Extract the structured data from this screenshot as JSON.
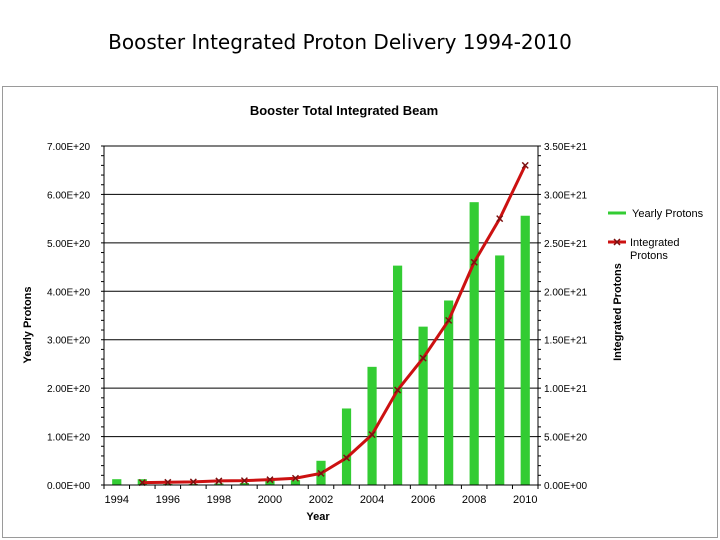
{
  "slide": {
    "title": "Booster Integrated Proton Delivery 1994-2010"
  },
  "chart_data": {
    "type": "bar",
    "title": "Booster Total Integrated Beam",
    "xlabel": "Year",
    "ylabel_left": "Yearly Protons",
    "ylabel_right": "Integrated Protons",
    "x": [
      1994,
      1995,
      1996,
      1997,
      1998,
      1999,
      2000,
      2001,
      2002,
      2003,
      2004,
      2005,
      2006,
      2007,
      2008,
      2009,
      2010
    ],
    "x_tick_labels": [
      "1994",
      "1996",
      "1998",
      "2000",
      "2002",
      "2004",
      "2006",
      "2008",
      "2010"
    ],
    "y_left_ticks": [
      "0.00E+00",
      "1.00E+20",
      "2.00E+20",
      "3.00E+20",
      "4.00E+20",
      "5.00E+20",
      "6.00E+20",
      "7.00E+20"
    ],
    "y_right_ticks": [
      "0.00E+00",
      "5.00E+20",
      "1.00E+21",
      "1.50E+21",
      "2.00E+21",
      "2.50E+21",
      "3.00E+21",
      "3.50E+21"
    ],
    "ylim_left": [
      0,
      7e+20
    ],
    "ylim_right": [
      0,
      3.5e+21
    ],
    "grid": true,
    "legend_position": "right",
    "series": [
      {
        "name": "Yearly Protons",
        "type": "bar",
        "axis": "left",
        "color": "#33cc33",
        "values": [
          1.2e+19,
          1.2e+19,
          2e+18,
          2e+18,
          3e+18,
          4e+18,
          1e+19,
          1e+19,
          5e+19,
          1.58e+20,
          2.44e+20,
          4.53e+20,
          3.27e+20,
          3.81e+20,
          5.84e+20,
          4.74e+20,
          5.56e+20
        ]
      },
      {
        "name": "Integrated Protons",
        "type": "line",
        "axis": "right",
        "color": "#cc1111",
        "marker": "x",
        "values": [
          null,
          2.5e+19,
          2.8e+19,
          3.2e+19,
          4.2e+19,
          4.5e+19,
          5.5e+19,
          7e+19,
          1.2e+20,
          2.8e+20,
          5.2e+20,
          9.8e+20,
          1.31e+21,
          1.7e+21,
          2.3e+21,
          2.75e+21,
          3.3e+21
        ]
      }
    ]
  }
}
